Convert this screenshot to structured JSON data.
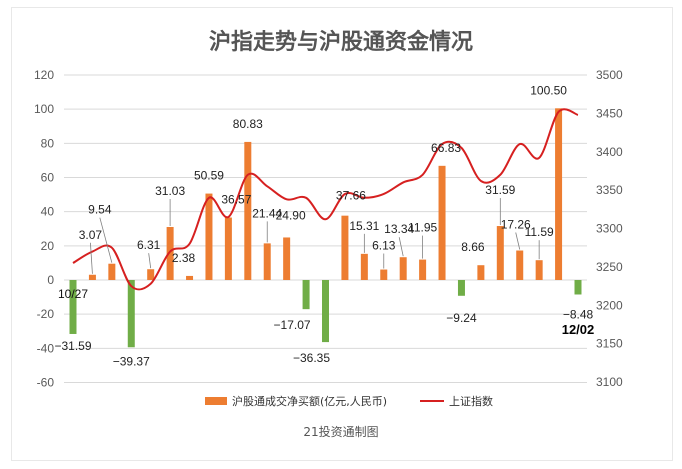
{
  "chart_data": {
    "type": "bar",
    "title": "沪指走势与沪股通资金情况",
    "source": "21投资通制图",
    "start_date_label": "10/27",
    "end_date_label": "12/02",
    "legend": {
      "bar_series": "沪股通成交净买额(亿元,人民币)",
      "line_series": "上证指数"
    },
    "left_axis": {
      "min": -60,
      "max": 120,
      "step": 20,
      "ticks": [
        "-60",
        "-40",
        "-20",
        "0",
        "20",
        "40",
        "60",
        "80",
        "100",
        "120"
      ]
    },
    "right_axis": {
      "min": 3100,
      "max": 3500,
      "step": 50,
      "ticks": [
        "3100",
        "3150",
        "3200",
        "3250",
        "3300",
        "3350",
        "3400",
        "3450",
        "3500"
      ]
    },
    "bar_values": [
      -31.59,
      3.07,
      9.54,
      -39.37,
      6.31,
      31.03,
      2.38,
      50.59,
      36.57,
      80.83,
      21.44,
      24.9,
      -17.07,
      -36.35,
      37.66,
      15.31,
      6.13,
      13.34,
      11.95,
      66.83,
      -9.24,
      8.66,
      31.59,
      17.26,
      11.59,
      100.5,
      -8.48
    ],
    "bar_labels": [
      "−31.59",
      "3.07",
      "9.54",
      "−39.37",
      "6.31",
      "31.03",
      "2.38",
      "50.59",
      "36.57",
      "80.83",
      "21.44",
      "24.90",
      "−17.07",
      "−36.35",
      "37.66",
      "15.31",
      "6.13",
      "13.34",
      "11.95",
      "66.83",
      "−9.24",
      "8.66",
      "31.59",
      "17.26",
      "11.59",
      "100.50",
      "−8.48"
    ],
    "index_values": [
      3255,
      3270,
      3275,
      3225,
      3228,
      3270,
      3280,
      3340,
      3315,
      3370,
      3355,
      3338,
      3340,
      3312,
      3345,
      3340,
      3345,
      3360,
      3370,
      3410,
      3405,
      3362,
      3370,
      3410,
      3392,
      3452,
      3448
    ],
    "colors": {
      "positive": "#ED7D31",
      "negative": "#70AD47",
      "line": "#D62020",
      "grid": "#D9D9D9"
    }
  }
}
